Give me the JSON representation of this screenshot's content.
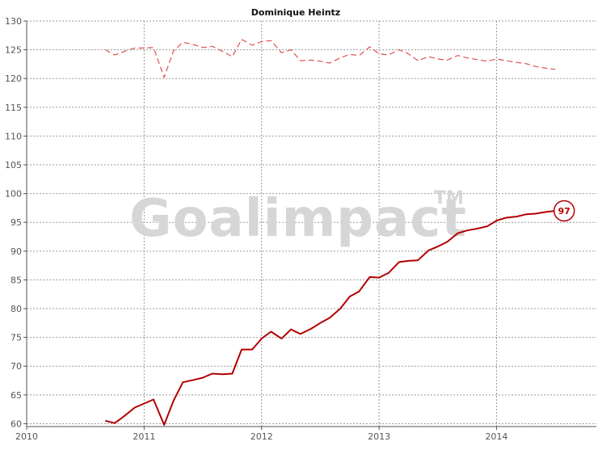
{
  "chart_data": {
    "type": "line",
    "title": "Dominique Heintz",
    "xlabel": "",
    "ylabel": "",
    "xlim": [
      2010.0,
      2014.85
    ],
    "ylim": [
      59.5,
      130
    ],
    "x_ticks": [
      2010,
      2011,
      2012,
      2013,
      2014
    ],
    "y_ticks": [
      60,
      65,
      70,
      75,
      80,
      85,
      90,
      95,
      100,
      105,
      110,
      115,
      120,
      125,
      130
    ],
    "grid": true,
    "legend": "none",
    "watermark": "Goalimpact",
    "watermark_mark": "TM",
    "end_label": "97",
    "series": [
      {
        "style": "solid",
        "color": "#b30000",
        "x": [
          2010.67,
          2010.75,
          2010.83,
          2010.92,
          2011.0,
          2011.08,
          2011.17,
          2011.25,
          2011.33,
          2011.42,
          2011.5,
          2011.58,
          2011.67,
          2011.75,
          2011.83,
          2011.92,
          2012.0,
          2012.08,
          2012.17,
          2012.25,
          2012.33,
          2012.42,
          2012.5,
          2012.58,
          2012.67,
          2012.75,
          2012.83,
          2012.92,
          2013.0,
          2013.08,
          2013.17,
          2013.25,
          2013.33,
          2013.42,
          2013.5,
          2013.58,
          2013.67,
          2013.75,
          2013.83,
          2013.92,
          2014.0,
          2014.08,
          2014.17,
          2014.25,
          2014.33,
          2014.42,
          2014.5
        ],
        "y": [
          60.5,
          60.1,
          61.3,
          62.8,
          63.5,
          64.2,
          59.8,
          64.0,
          67.2,
          67.6,
          68.0,
          68.7,
          68.6,
          68.7,
          72.9,
          72.9,
          74.8,
          76.0,
          74.8,
          76.4,
          75.6,
          76.5,
          77.5,
          78.4,
          80.0,
          82.1,
          83.0,
          85.5,
          85.4,
          86.2,
          88.1,
          88.3,
          88.4,
          90.1,
          90.8,
          91.6,
          93.1,
          93.6,
          93.9,
          94.3,
          95.3,
          95.8,
          96.0,
          96.4,
          96.5,
          96.8,
          97.0
        ]
      },
      {
        "style": "dashed",
        "color": "#e05050",
        "x": [
          2010.67,
          2010.75,
          2010.83,
          2010.92,
          2011.0,
          2011.08,
          2011.17,
          2011.25,
          2011.33,
          2011.42,
          2011.5,
          2011.58,
          2011.67,
          2011.75,
          2011.83,
          2011.92,
          2012.0,
          2012.08,
          2012.17,
          2012.25,
          2012.33,
          2012.42,
          2012.5,
          2012.58,
          2012.67,
          2012.75,
          2012.83,
          2012.92,
          2013.0,
          2013.08,
          2013.17,
          2013.25,
          2013.33,
          2013.42,
          2013.5,
          2013.58,
          2013.67,
          2013.75,
          2013.83,
          2013.92,
          2014.0,
          2014.08,
          2014.17,
          2014.25,
          2014.33,
          2014.42,
          2014.5
        ],
        "y": [
          125.0,
          124.1,
          124.7,
          125.3,
          125.3,
          125.4,
          120.2,
          124.8,
          126.3,
          125.9,
          125.4,
          125.6,
          124.7,
          123.8,
          126.8,
          125.8,
          126.4,
          126.6,
          124.5,
          125.0,
          123.1,
          123.2,
          123.0,
          122.7,
          123.6,
          124.2,
          124.0,
          125.5,
          124.3,
          124.1,
          125.0,
          124.3,
          123.1,
          123.8,
          123.4,
          123.2,
          124.0,
          123.6,
          123.3,
          123.0,
          123.4,
          123.1,
          122.8,
          122.6,
          122.1,
          121.8,
          121.6
        ]
      }
    ]
  }
}
